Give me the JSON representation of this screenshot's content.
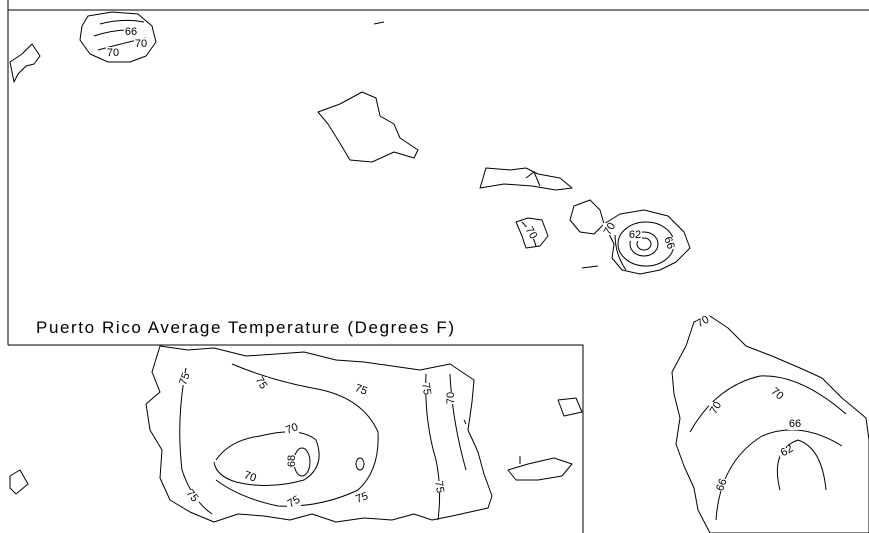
{
  "title": "Puerto Rico Average Temperature (Degrees F)",
  "contour_labels": {
    "niihau_66": "66",
    "niihau_70a": "70",
    "niihau_70b": "70",
    "lanai_70": "70",
    "maui_70": "70",
    "maui_62": "62",
    "maui_66": "66",
    "hawaii_70a": "70",
    "hawaii_70b": "70",
    "hawaii_70c": "70",
    "hawaii_66a": "66",
    "hawaii_62": "62",
    "hawaii_66b": "66",
    "pr_75a": "75",
    "pr_75b": "75",
    "pr_75c": "75",
    "pr_75d": "75",
    "pr_70a": "70",
    "pr_70b": "70",
    "pr_70c": "70",
    "pr_68": "68",
    "pr_75e": "75",
    "pr_75f": "75",
    "pr_75g": "75",
    "pr_75h": "75"
  },
  "colors": {
    "line": "#000000",
    "background": "#ffffff"
  }
}
